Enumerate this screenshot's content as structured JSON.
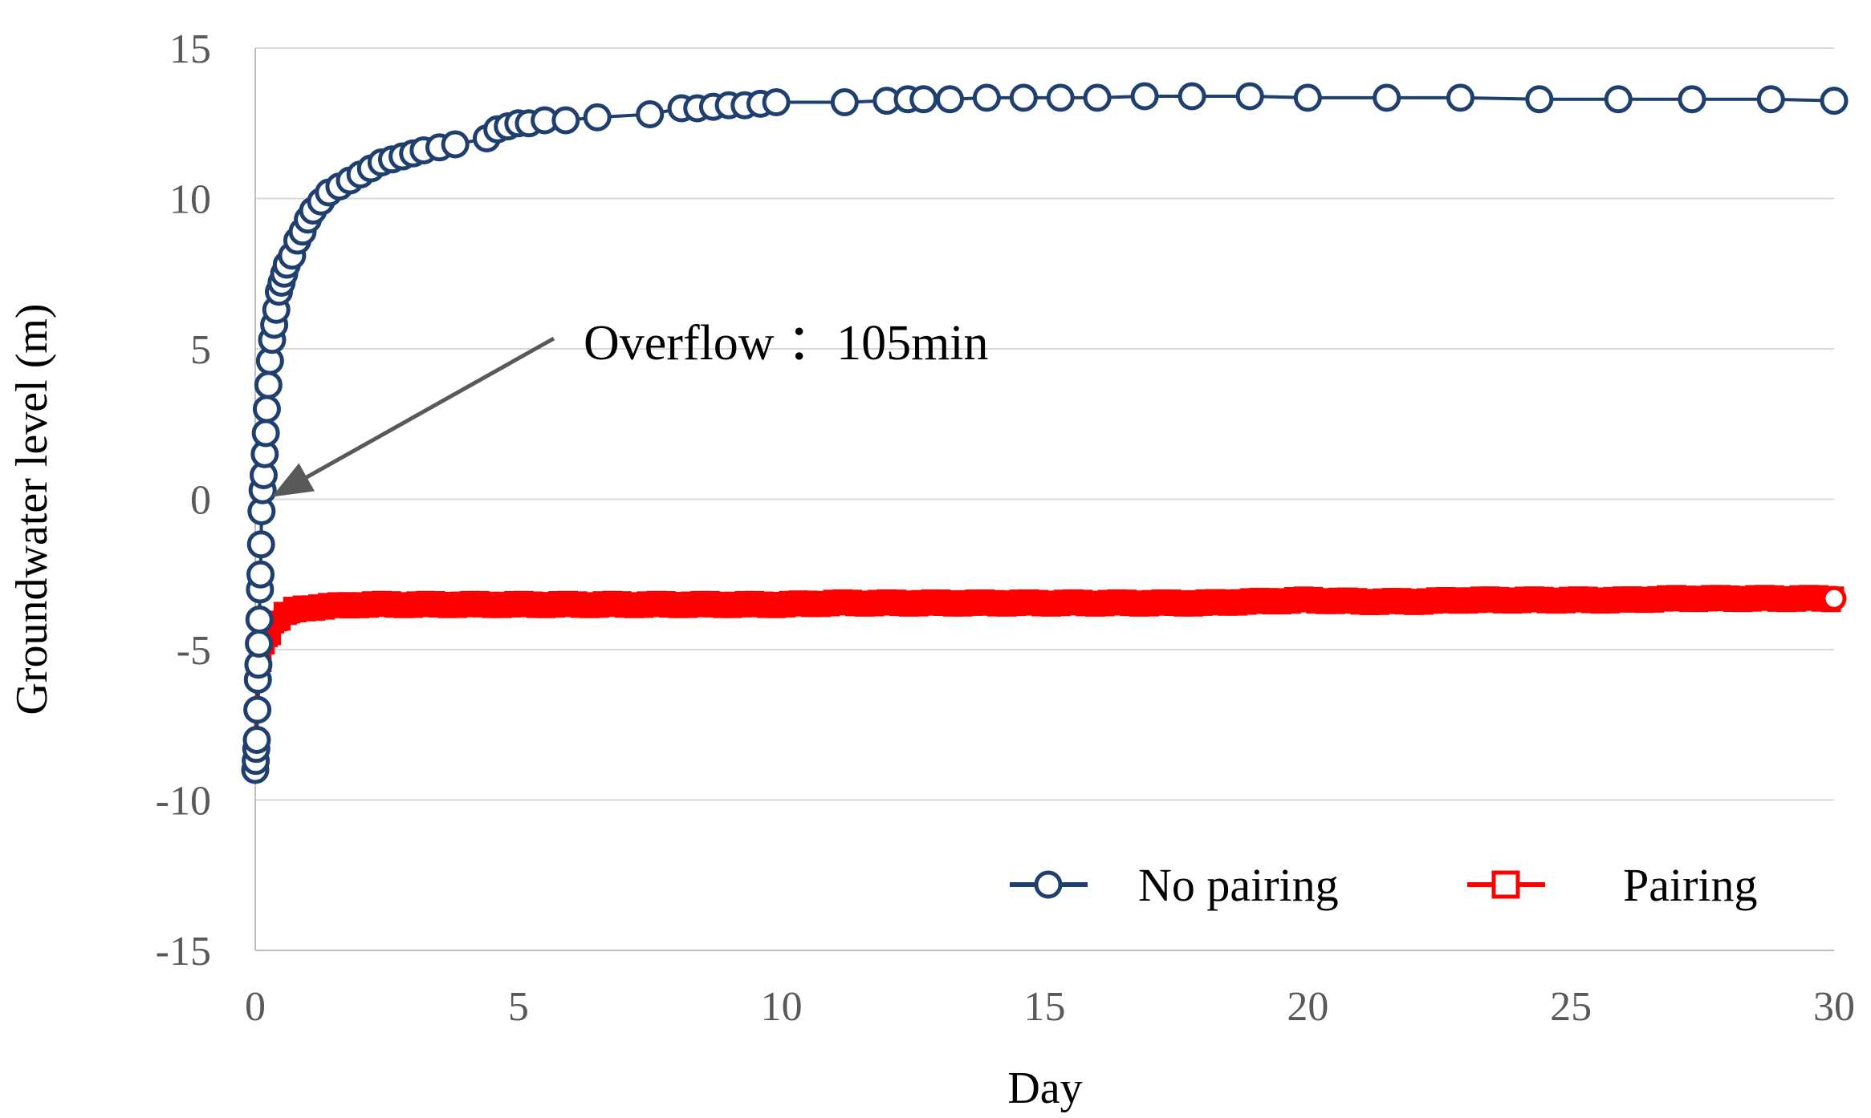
{
  "chart_data": {
    "type": "line",
    "title": "",
    "xlabel": "Day",
    "ylabel": "Groundwater level (m)",
    "xlim": [
      0,
      30
    ],
    "ylim": [
      -15,
      15
    ],
    "xticks": [
      "0",
      "5",
      "10",
      "15",
      "20",
      "25",
      "30"
    ],
    "yticks": [
      "15",
      "10",
      "5",
      "0",
      "-5",
      "-10",
      "-15"
    ],
    "grid": true,
    "legend_position": "bottom-right",
    "annotation": {
      "text": "Overflow ：105min",
      "points_to": {
        "x": 0.07,
        "y": 0
      }
    },
    "colors": {
      "no_pairing": "#1f3f6e",
      "pairing": "#ff0000",
      "grid": "#d9d9d9",
      "axis": "#bfbfbf",
      "arrow": "#595959"
    },
    "series": [
      {
        "name": "No pairing",
        "marker": "circle",
        "x": [
          0.0,
          0.01,
          0.02,
          0.03,
          0.04,
          0.05,
          0.06,
          0.07,
          0.08,
          0.09,
          0.1,
          0.11,
          0.12,
          0.14,
          0.16,
          0.18,
          0.2,
          0.22,
          0.25,
          0.28,
          0.32,
          0.36,
          0.4,
          0.45,
          0.5,
          0.55,
          0.6,
          0.7,
          0.8,
          0.9,
          1.0,
          1.1,
          1.25,
          1.4,
          1.6,
          1.8,
          2.0,
          2.2,
          2.4,
          2.6,
          2.8,
          3.0,
          3.2,
          3.5,
          3.8,
          4.4,
          4.6,
          4.8,
          5.0,
          5.2,
          5.5,
          5.9,
          6.5,
          7.5,
          8.1,
          8.4,
          8.7,
          9.0,
          9.3,
          9.6,
          9.9,
          11.2,
          12.0,
          12.4,
          12.7,
          13.2,
          13.9,
          14.6,
          15.3,
          16.0,
          16.9,
          17.8,
          18.9,
          20.0,
          21.5,
          22.9,
          24.4,
          25.9,
          27.3,
          28.8,
          30.0
        ],
        "y": [
          -9.0,
          -8.7,
          -8.3,
          -8.0,
          -7.0,
          -6.0,
          -5.5,
          -4.8,
          -4.0,
          -3.0,
          -2.5,
          -1.5,
          -0.4,
          0.3,
          0.8,
          1.5,
          2.2,
          3.0,
          3.8,
          4.6,
          5.3,
          5.8,
          6.3,
          6.9,
          7.2,
          7.5,
          7.8,
          8.1,
          8.6,
          8.9,
          9.3,
          9.6,
          9.9,
          10.2,
          10.4,
          10.6,
          10.8,
          11.0,
          11.2,
          11.3,
          11.4,
          11.5,
          11.6,
          11.7,
          11.8,
          12.0,
          12.3,
          12.4,
          12.5,
          12.5,
          12.6,
          12.6,
          12.7,
          12.8,
          13.0,
          13.0,
          13.05,
          13.1,
          13.1,
          13.15,
          13.2,
          13.2,
          13.25,
          13.3,
          13.3,
          13.3,
          13.35,
          13.35,
          13.35,
          13.35,
          13.4,
          13.4,
          13.4,
          13.35,
          13.35,
          13.35,
          13.3,
          13.3,
          13.3,
          13.3,
          13.25
        ]
      },
      {
        "name": "Pairing",
        "marker": "square",
        "x": [
          0.0,
          0.03,
          0.06,
          0.1,
          0.15,
          0.2,
          0.3,
          0.4,
          0.5,
          0.7,
          1.0,
          1.5,
          2.0,
          3.0,
          4.0,
          5.0,
          6.0,
          7.0,
          8.0,
          9.0,
          10.0,
          11.0,
          12.0,
          13.0,
          14.0,
          15.0,
          16.0,
          17.0,
          18.0,
          19.0,
          20.0,
          21.0,
          22.0,
          23.0,
          24.0,
          25.0,
          26.0,
          27.0,
          28.0,
          29.0,
          30.0
        ],
        "y": [
          -9.0,
          -7.0,
          -6.0,
          -5.5,
          -5.0,
          -4.8,
          -4.4,
          -4.1,
          -3.9,
          -3.7,
          -3.6,
          -3.55,
          -3.5,
          -3.5,
          -3.5,
          -3.5,
          -3.5,
          -3.5,
          -3.5,
          -3.5,
          -3.5,
          -3.45,
          -3.45,
          -3.45,
          -3.45,
          -3.45,
          -3.45,
          -3.45,
          -3.45,
          -3.4,
          -3.35,
          -3.4,
          -3.4,
          -3.35,
          -3.35,
          -3.35,
          -3.35,
          -3.3,
          -3.3,
          -3.3,
          -3.3
        ]
      }
    ]
  }
}
